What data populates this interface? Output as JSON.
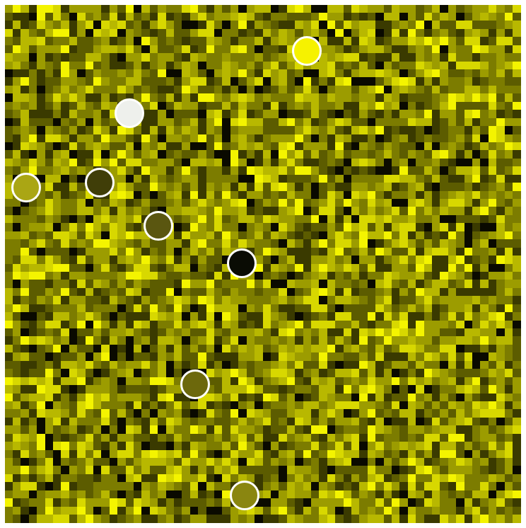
{
  "board": {
    "palette": [
      "#0a0a00",
      "#3a3a00",
      "#5c5c00",
      "#7c7c00",
      "#9c9c00",
      "#b8b800",
      "#d8d800",
      "#f4f400"
    ],
    "grid_cols": 64,
    "grid_rows": 64,
    "random_seed": 20240601
  },
  "tokens": [
    {
      "id": "token-bright-yellow",
      "color": "#f6f200"
    },
    {
      "id": "token-white",
      "color": "#eef0ec"
    },
    {
      "id": "token-olive-light",
      "color": "#aaa614"
    },
    {
      "id": "token-dark-olive",
      "color": "#403e08"
    },
    {
      "id": "token-olive-mid",
      "color": "#5a5610"
    },
    {
      "id": "token-black",
      "color": "#0a0c04"
    },
    {
      "id": "token-olive-brown",
      "color": "#6c680c"
    },
    {
      "id": "token-olive-bottom",
      "color": "#8a8610"
    }
  ]
}
